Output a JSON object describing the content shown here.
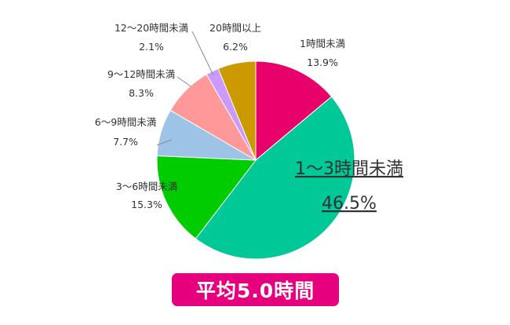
{
  "chart_data": {
    "type": "pie",
    "categories": [
      "1時間未満",
      "1～3時間未満",
      "3～6時間未満",
      "6～9時間未満",
      "9～12時間未満",
      "12～20時間未満",
      "20時間以上"
    ],
    "values": [
      13.9,
      46.5,
      15.3,
      7.7,
      8.3,
      2.1,
      6.2
    ],
    "value_labels": [
      "13.9%",
      "46.5%",
      "15.3%",
      "7.7%",
      "8.3%",
      "2.1%",
      "6.2%"
    ],
    "colors": [
      "#e8006b",
      "#00c896",
      "#00cc00",
      "#9dc3e6",
      "#ff9999",
      "#cc99ff",
      "#cc9900"
    ],
    "start_angle": "12 o'clock",
    "direction": "clockwise",
    "legend": "none"
  },
  "badge": {
    "label": "平均5.0時間"
  }
}
